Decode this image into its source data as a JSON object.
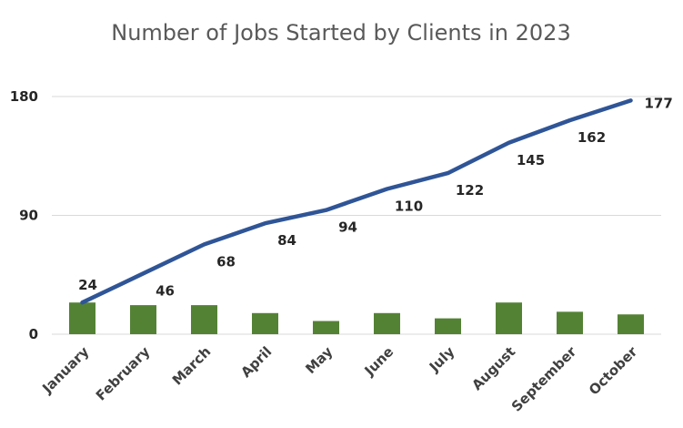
{
  "chart_data": {
    "type": "bar+line",
    "title": "Number of Jobs Started by Clients in 2023",
    "categories": [
      "January",
      "February",
      "March",
      "April",
      "May",
      "June",
      "July",
      "August",
      "September",
      "October"
    ],
    "bar_series": {
      "values": [
        24,
        22,
        22,
        16,
        10,
        16,
        12,
        24,
        17,
        15
      ],
      "color": "#548235"
    },
    "line_series": {
      "values": [
        24,
        46,
        68,
        84,
        94,
        110,
        122,
        145,
        162,
        177
      ],
      "color": "#2F5597",
      "data_labels": [
        "24",
        "46",
        "68",
        "84",
        "94",
        "110",
        "122",
        "145",
        "162",
        "177"
      ]
    },
    "ylim": [
      0,
      180
    ],
    "yticks": [
      "0",
      "90",
      "180"
    ],
    "ytick_values": [
      0,
      90,
      180
    ],
    "grid": true,
    "legend": "none"
  }
}
